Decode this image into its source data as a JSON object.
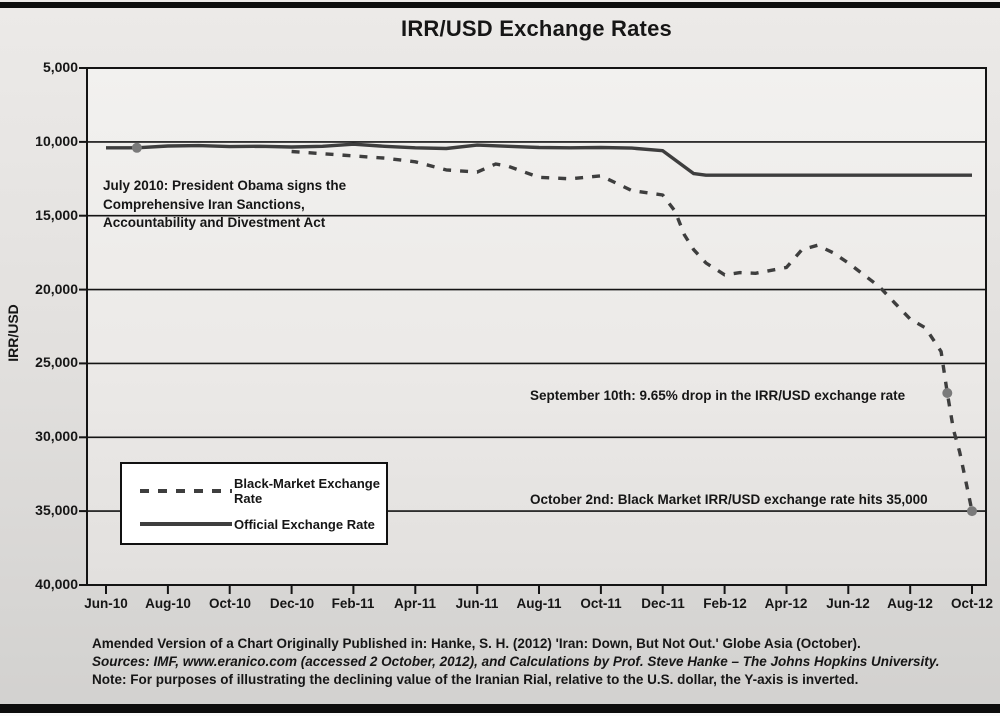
{
  "title": "IRR/USD Exchange Rates",
  "colors": {
    "line": "#3e3e3e",
    "marker": "#7a7a7a",
    "grid": "#141414",
    "frame": "#141414",
    "text": "#161616"
  },
  "y_axis": {
    "label": "IRR/USD",
    "tick_labels": [
      "5,000",
      "10,000",
      "15,000",
      "20,000",
      "25,000",
      "30,000",
      "35,000",
      "40,000"
    ],
    "tick_values": [
      5000,
      10000,
      15000,
      20000,
      25000,
      30000,
      35000,
      40000
    ]
  },
  "x_axis": {
    "tick_labels": [
      "Jun-10",
      "Aug-10",
      "Oct-10",
      "Dec-10",
      "Feb-11",
      "Apr-11",
      "Jun-11",
      "Aug-11",
      "Oct-11",
      "Dec-11",
      "Feb-12",
      "Apr-12",
      "Jun-12",
      "Aug-12",
      "Oct-12"
    ]
  },
  "legend": {
    "items": [
      {
        "label": "Black-Market Exchange Rate",
        "style": "dashed"
      },
      {
        "label": "Official Exchange Rate",
        "style": "solid"
      }
    ]
  },
  "annotations": {
    "july2010": "July 2010: President Obama signs the\nComprehensive Iran Sanctions,\nAccountability and Divestment Act",
    "sep2012": "September 10th: 9.65% drop in the IRR/USD exchange rate",
    "oct2012": "October 2nd: Black Market IRR/USD exchange rate hits 35,000"
  },
  "footer": {
    "line1": "Amended Version of a Chart Originally Published in: Hanke, S. H. (2012) 'Iran: Down, But Not Out.' Globe Asia (October).",
    "line2": "Sources: IMF,  www.eranico.com (accessed 2 October, 2012), and Calculations by Prof. Steve Hanke – The Johns Hopkins University.",
    "line3": "Note: For purposes of illustrating the declining value of the Iranian Rial, relative to the U.S. dollar, the Y-axis is inverted."
  },
  "chart_data": {
    "type": "line",
    "title": "IRR/USD Exchange Rates",
    "xlabel": "",
    "ylabel": "IRR/USD",
    "ylim": [
      5000,
      40000
    ],
    "y_inverted": true,
    "x_unit": "months since Jun-2010 (0 = Jun-10, 28 = Oct-12)",
    "x_tick_months": [
      0,
      2,
      4,
      6,
      8,
      10,
      12,
      14,
      16,
      18,
      20,
      22,
      24,
      26,
      28
    ],
    "grid": "horizontal",
    "legend_position": "lower-left",
    "series": [
      {
        "name": "Official Exchange Rate",
        "key": "official-rate-line",
        "style": "solid",
        "points": [
          [
            0,
            10400
          ],
          [
            1,
            10400
          ],
          [
            2,
            10280
          ],
          [
            3,
            10250
          ],
          [
            4,
            10320
          ],
          [
            5,
            10300
          ],
          [
            6,
            10350
          ],
          [
            7,
            10300
          ],
          [
            8,
            10160
          ],
          [
            9,
            10300
          ],
          [
            10,
            10400
          ],
          [
            11,
            10450
          ],
          [
            12,
            10220
          ],
          [
            13,
            10300
          ],
          [
            14,
            10380
          ],
          [
            15,
            10400
          ],
          [
            16,
            10380
          ],
          [
            17,
            10420
          ],
          [
            18,
            10600
          ],
          [
            19,
            12150
          ],
          [
            19.4,
            12260
          ],
          [
            20,
            12260
          ],
          [
            21,
            12260
          ],
          [
            22,
            12260
          ],
          [
            23,
            12260
          ],
          [
            24,
            12260
          ],
          [
            25,
            12260
          ],
          [
            26,
            12260
          ],
          [
            27,
            12260
          ],
          [
            28,
            12260
          ]
        ]
      },
      {
        "name": "Black-Market Exchange Rate",
        "key": "black-market-line",
        "style": "dashed",
        "points": [
          [
            6,
            10650
          ],
          [
            7,
            10800
          ],
          [
            8,
            10950
          ],
          [
            9,
            11100
          ],
          [
            10,
            11350
          ],
          [
            11,
            11900
          ],
          [
            12,
            12050
          ],
          [
            12.6,
            11500
          ],
          [
            13,
            11650
          ],
          [
            14,
            12400
          ],
          [
            15,
            12500
          ],
          [
            16,
            12300
          ],
          [
            17,
            13300
          ],
          [
            18,
            13600
          ],
          [
            18.4,
            14700
          ],
          [
            18.7,
            16300
          ],
          [
            19,
            17300
          ],
          [
            19.4,
            18200
          ],
          [
            20,
            19000
          ],
          [
            20.5,
            18850
          ],
          [
            21,
            18900
          ],
          [
            22,
            18500
          ],
          [
            22.5,
            17300
          ],
          [
            23,
            17000
          ],
          [
            23.5,
            17500
          ],
          [
            24,
            18200
          ],
          [
            24.5,
            19000
          ],
          [
            25,
            19800
          ],
          [
            25.5,
            20900
          ],
          [
            26,
            22000
          ],
          [
            26.5,
            22600
          ],
          [
            27,
            24200
          ],
          [
            27.2,
            27000
          ],
          [
            27.4,
            29500
          ],
          [
            27.6,
            31000
          ],
          [
            27.8,
            33000
          ],
          [
            28,
            35000
          ]
        ]
      }
    ],
    "markers": [
      {
        "name": "july-2010-point",
        "series": "Official Exchange Rate",
        "x": 1,
        "y": 10400,
        "label": "July 2010: President Obama signs the Comprehensive Iran Sanctions, Accountability and Divestment Act"
      },
      {
        "name": "sep-10-point",
        "series": "Black-Market Exchange Rate",
        "x": 27.2,
        "y": 27000,
        "label": "September 10th: 9.65% drop in the IRR/USD exchange rate"
      },
      {
        "name": "oct-2-point",
        "series": "Black-Market Exchange Rate",
        "x": 28,
        "y": 35000,
        "label": "October 2nd: Black Market IRR/USD exchange rate hits 35,000"
      }
    ]
  }
}
